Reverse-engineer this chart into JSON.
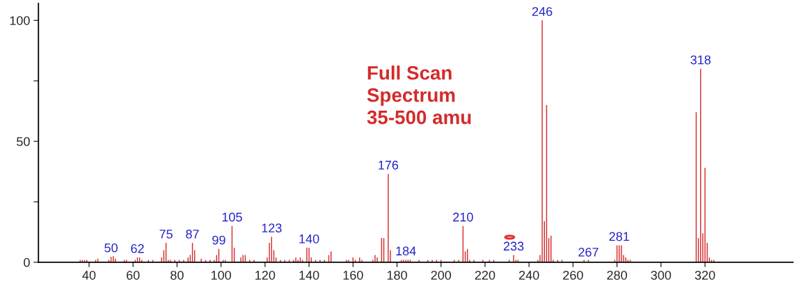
{
  "chart_data": {
    "type": "bar",
    "x": [
      36,
      37,
      38,
      39,
      43,
      44,
      49,
      50,
      51,
      52,
      56,
      57,
      61,
      62,
      63,
      64,
      67,
      69,
      73,
      74,
      75,
      76,
      77,
      79,
      81,
      83,
      85,
      86,
      87,
      88,
      91,
      93,
      95,
      97,
      98,
      99,
      101,
      102,
      105,
      106,
      109,
      110,
      111,
      113,
      115,
      121,
      122,
      123,
      124,
      125,
      127,
      129,
      131,
      133,
      134,
      135,
      136,
      137,
      139,
      140,
      141,
      143,
      145,
      147,
      149,
      150,
      157,
      158,
      160,
      161,
      163,
      164,
      169,
      170,
      171,
      173,
      174,
      176,
      177,
      182,
      183,
      184,
      185,
      186,
      190,
      194,
      196,
      198,
      200,
      206,
      208,
      210,
      211,
      212,
      213,
      215,
      219,
      222,
      224,
      231,
      233,
      234,
      235,
      244,
      245,
      246,
      247,
      248,
      249,
      250,
      251,
      253,
      255,
      265,
      267,
      279,
      280,
      281,
      282,
      283,
      284,
      285,
      286,
      316,
      317,
      318,
      319,
      320,
      321,
      322,
      323,
      324
    ],
    "values": [
      1,
      1,
      1,
      1,
      1,
      1.5,
      1,
      2.3,
      2.5,
      1.5,
      1,
      1,
      1,
      2,
      2,
      1,
      1,
      1,
      2,
      5,
      8,
      1,
      1,
      1,
      1,
      1,
      2,
      3,
      8,
      5,
      1.5,
      1,
      1,
      1,
      3,
      5.5,
      1,
      1,
      15,
      6,
      2,
      3,
      3,
      1,
      1,
      2,
      8,
      10.5,
      5,
      2,
      1,
      1,
      1,
      1,
      2,
      1,
      2,
      1,
      6,
      6,
      2,
      1,
      1,
      1,
      3,
      4.5,
      1,
      1,
      2,
      1,
      2,
      1,
      1,
      3,
      2,
      10,
      10,
      36.5,
      5,
      1,
      1,
      1,
      1,
      1,
      1,
      1,
      1,
      1,
      1,
      1,
      1,
      15,
      4.5,
      5.5,
      1,
      1,
      1,
      1,
      1,
      1,
      3,
      1,
      1,
      1,
      3,
      100,
      17,
      65,
      10,
      11,
      1,
      1,
      1,
      1,
      1,
      1,
      7,
      7,
      7,
      3,
      2,
      1,
      1,
      62,
      10,
      80,
      12,
      39,
      8,
      2,
      1,
      1
    ],
    "color": "#d42a2a",
    "xlim": [
      17,
      360
    ],
    "xticks": [
      40,
      60,
      80,
      100,
      120,
      140,
      160,
      180,
      200,
      220,
      240,
      260,
      280,
      300,
      320
    ],
    "ylim": [
      0,
      107
    ],
    "yticks": [
      0,
      {
        "value": 25,
        "label": null
      },
      50,
      {
        "value": 75,
        "label": null
      },
      100
    ],
    "grid": false,
    "annotations": [
      {
        "text": "50",
        "x": 50,
        "y": 2.3
      },
      {
        "text": "62",
        "x": 62,
        "y": 2
      },
      {
        "text": "75",
        "x": 75,
        "y": 8
      },
      {
        "text": "87",
        "x": 87,
        "y": 8
      },
      {
        "text": "99",
        "x": 99,
        "y": 5.5
      },
      {
        "text": "105",
        "x": 105,
        "y": 15
      },
      {
        "text": "123",
        "x": 123,
        "y": 10.5
      },
      {
        "text": "140",
        "x": 140,
        "y": 6
      },
      {
        "text": "176",
        "x": 176,
        "y": 36.5
      },
      {
        "text": "184",
        "x": 184,
        "y": 1
      },
      {
        "text": "210",
        "x": 210,
        "y": 15
      },
      {
        "text": "233",
        "x": 233,
        "y": 3
      },
      {
        "text": "246",
        "x": 246,
        "y": 100
      },
      {
        "text": "267",
        "x": 267,
        "y": 0.5
      },
      {
        "text": "281",
        "x": 281,
        "y": 7
      },
      {
        "text": "318",
        "x": 318,
        "y": 80
      },
      "Full Scan\nSpectrum\n35-500 amu"
    ]
  }
}
